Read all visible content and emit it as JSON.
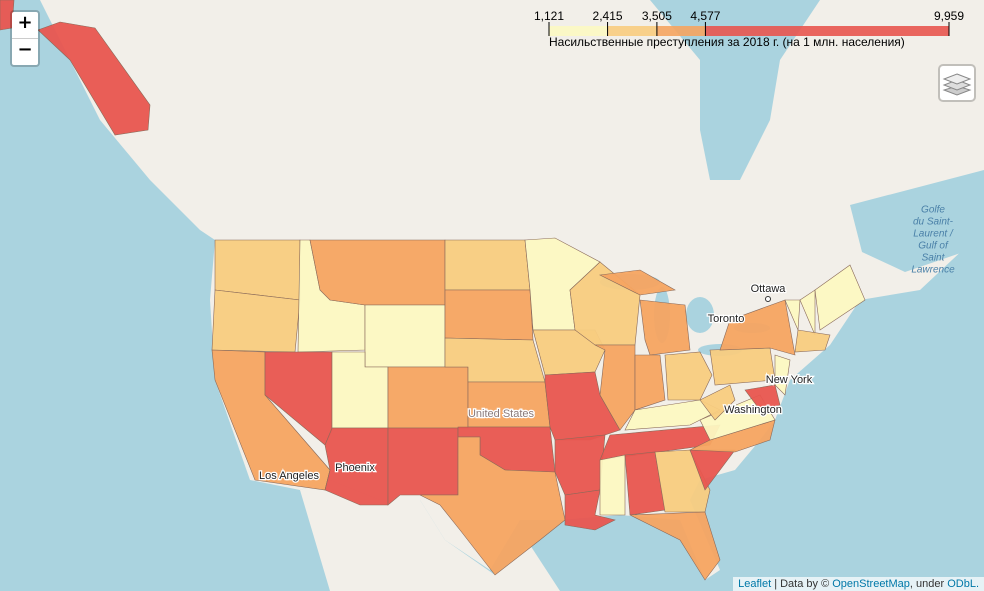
{
  "zoom": {
    "in": "+",
    "out": "−"
  },
  "legend": {
    "caption": "Насильственные преступления за 2018 г. (на 1 млн. населения)",
    "ticks": [
      {
        "value": 1121,
        "label": "1,121"
      },
      {
        "value": 2415,
        "label": "2,415"
      },
      {
        "value": 3505,
        "label": "3,505"
      },
      {
        "value": 4577,
        "label": "4,577"
      },
      {
        "value": 9959,
        "label": "9,959"
      }
    ],
    "colors": [
      "#fcf8c2",
      "#f8cc80",
      "#f5a461",
      "#e8554f"
    ]
  },
  "place_labels": [
    {
      "text": "Ottawa"
    },
    {
      "text": "Toronto"
    },
    {
      "text": "New York"
    },
    {
      "text": "Washington"
    },
    {
      "text": "United States"
    },
    {
      "text": "Phoenix"
    },
    {
      "text": "Los Angeles"
    }
  ],
  "water_label": {
    "lines": [
      "Golfe",
      "du Saint-",
      "Laurent /",
      "Gulf of",
      "Saint",
      "Lawrence"
    ]
  },
  "attribution": {
    "leaflet": "Leaflet",
    "data_by": "| Data by ©",
    "osm": "OpenStreetMap",
    "under": ", under",
    "license": "ODbL."
  }
}
